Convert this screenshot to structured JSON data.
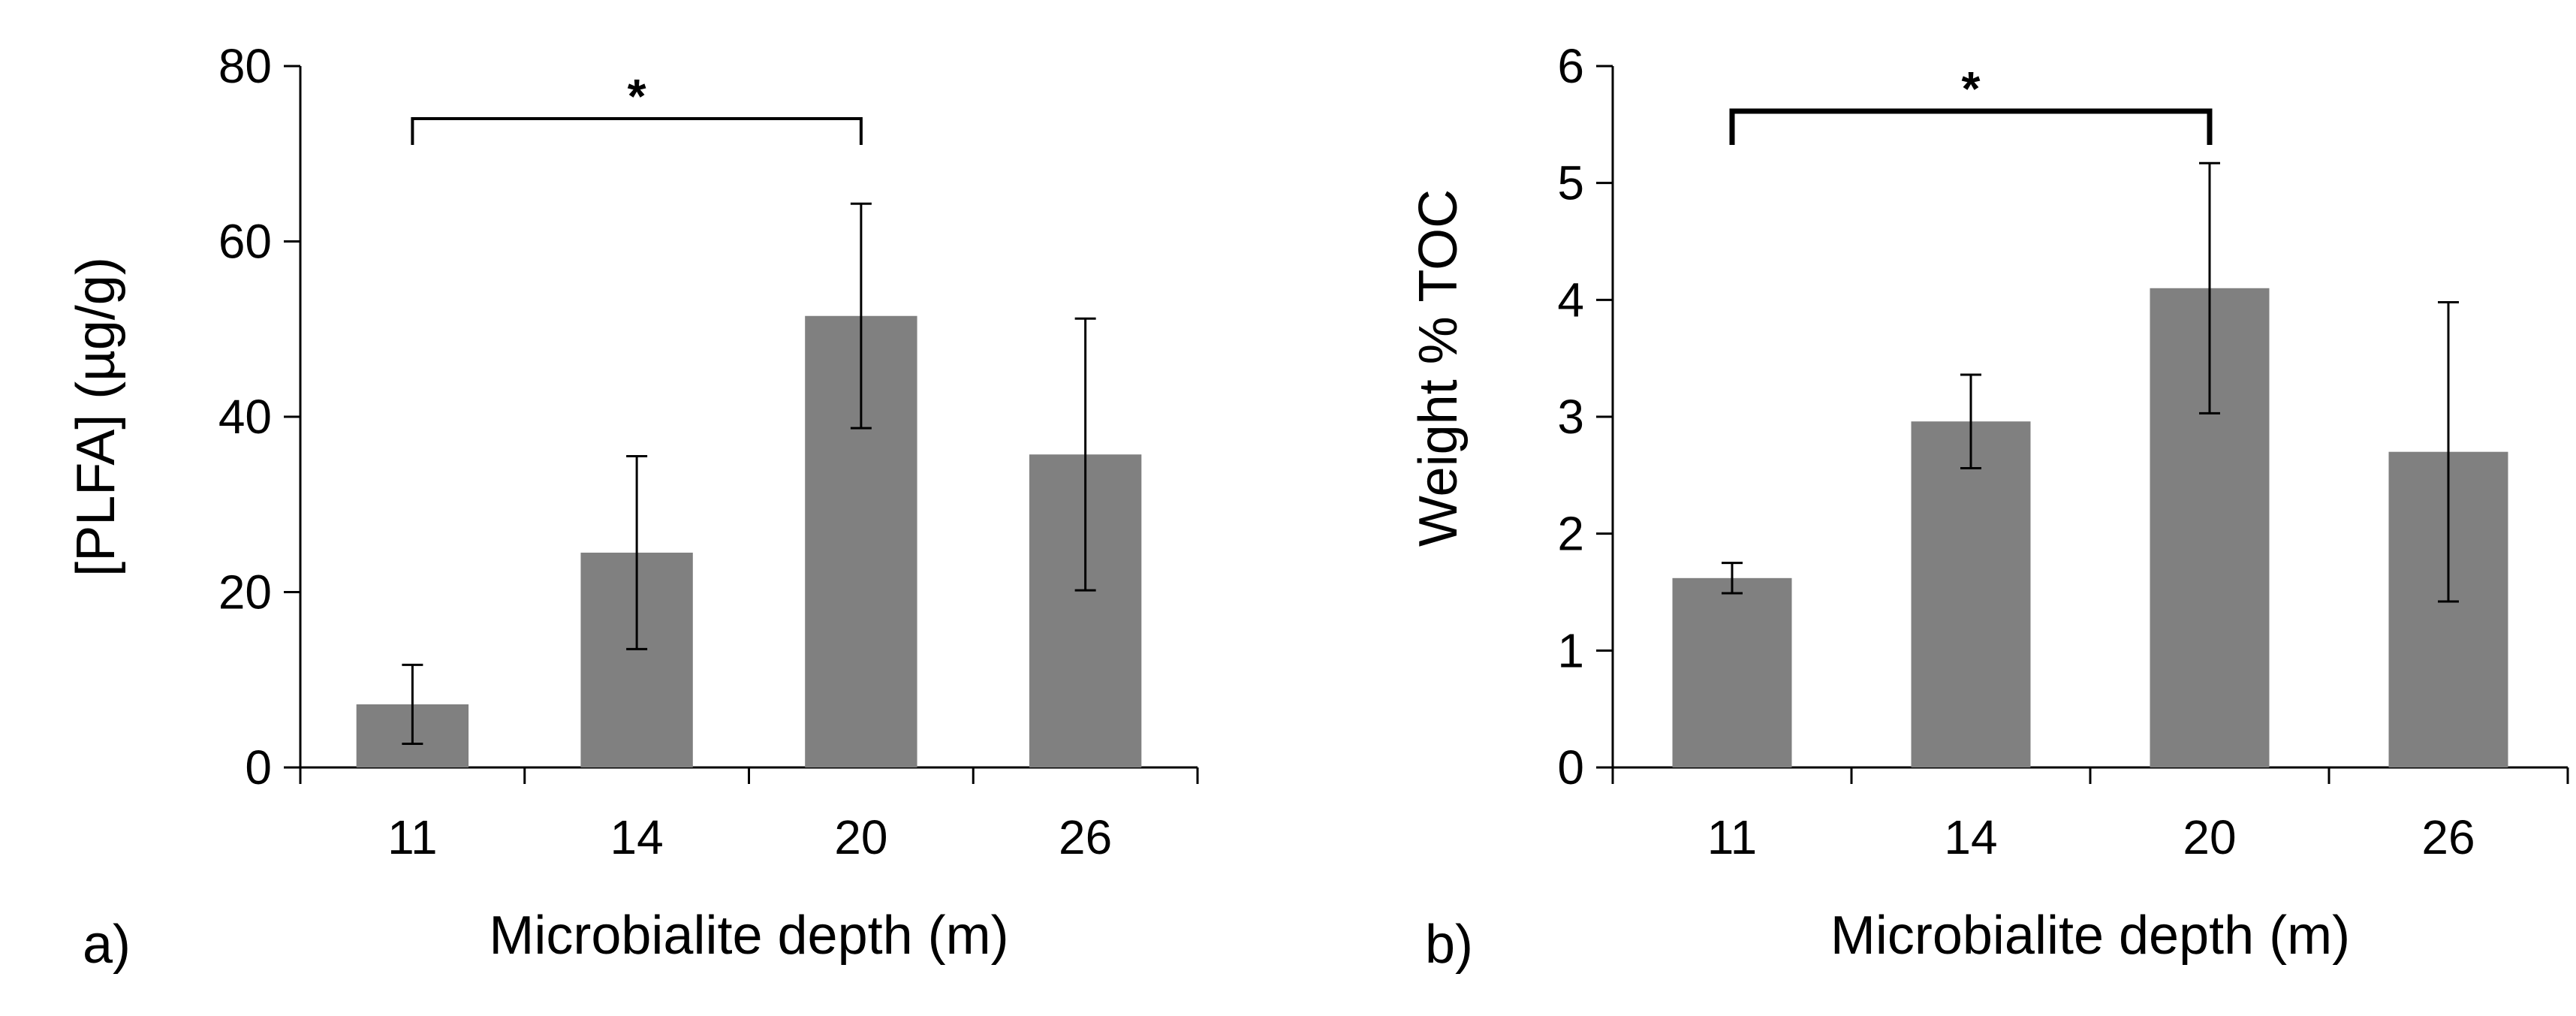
{
  "chart_data": [
    {
      "type": "bar",
      "panel_label": "a)",
      "categories": [
        "11",
        "14",
        "20",
        "26"
      ],
      "values": [
        7.2,
        24.5,
        51.5,
        35.7
      ],
      "errors": [
        4.5,
        11.0,
        12.8,
        15.5
      ],
      "xlabel": "Microbialite depth (m)",
      "ylabel": "[PLFA] (µg/g)",
      "ylim": [
        0,
        80
      ],
      "yticks": [
        0,
        20,
        40,
        60,
        80
      ],
      "significance": {
        "from": "11",
        "to": "20",
        "label": "*"
      },
      "bar_color": "#808080",
      "grid": false
    },
    {
      "type": "bar",
      "panel_label": "b)",
      "categories": [
        "11",
        "14",
        "20",
        "26"
      ],
      "values": [
        1.62,
        2.96,
        4.1,
        2.7
      ],
      "errors": [
        0.13,
        0.4,
        1.07,
        1.28
      ],
      "xlabel": "Microbialite depth (m)",
      "ylabel": "Weight % TOC",
      "ylim": [
        0,
        6
      ],
      "yticks": [
        0,
        1,
        2,
        3,
        4,
        5,
        6
      ],
      "significance": {
        "from": "11",
        "to": "20",
        "label": "*"
      },
      "bar_color": "#808080",
      "grid": false
    }
  ]
}
